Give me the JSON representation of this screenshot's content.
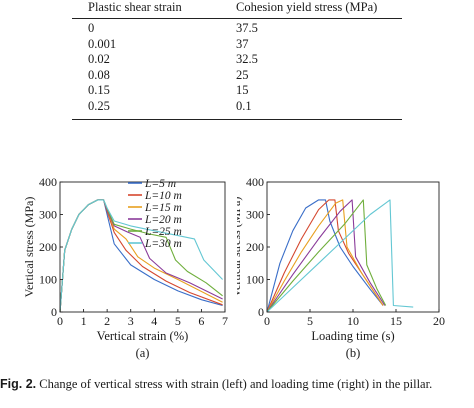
{
  "table": {
    "headers": [
      "Plastic shear strain",
      "Cohesion yield stress (MPa)"
    ],
    "rows": [
      [
        "0",
        "37.5"
      ],
      [
        "0.001",
        "37"
      ],
      [
        "0.02",
        "32.5"
      ],
      [
        "0.08",
        "25"
      ],
      [
        "0.15",
        "15"
      ],
      [
        "0.25",
        "0.1"
      ]
    ]
  },
  "figure": {
    "label": "Fig. 2.",
    "caption": "Change of vertical stress with strain (left) and loading time (right) in the pillar."
  },
  "chart_data": [
    {
      "type": "line",
      "panel_label": "(a)",
      "xlabel": "Vertical strain (%)",
      "ylabel": "Vertical stress (MPa)",
      "xlim": [
        0,
        7
      ],
      "ylim": [
        0,
        400
      ],
      "xticks": [
        "0",
        "1",
        "2",
        "3",
        "4",
        "5",
        "6",
        "7"
      ],
      "yticks": [
        "0",
        "100",
        "200",
        "300",
        "400"
      ],
      "legend_position": "top-right",
      "series": [
        {
          "name": "L=5 m",
          "color": "#3a6ec8",
          "x": [
            0,
            0.2,
            0.5,
            0.8,
            1.2,
            1.6,
            1.85,
            2.0,
            2.3,
            3,
            4,
            5,
            6,
            6.9
          ],
          "y": [
            0,
            190,
            255,
            300,
            330,
            345,
            345,
            300,
            210,
            145,
            100,
            65,
            38,
            20
          ]
        },
        {
          "name": "L=10 m",
          "color": "#d5482f",
          "x": [
            0,
            0.2,
            0.5,
            0.8,
            1.2,
            1.6,
            1.85,
            2.0,
            2.3,
            2.8,
            3.5,
            4.5,
            5.5,
            6.9
          ],
          "y": [
            0,
            190,
            255,
            300,
            330,
            345,
            345,
            310,
            245,
            190,
            140,
            95,
            60,
            22
          ]
        },
        {
          "name": "L=15 m",
          "color": "#e8a020",
          "x": [
            0,
            0.2,
            0.5,
            0.8,
            1.2,
            1.6,
            1.85,
            2.0,
            2.3,
            2.8,
            3.3,
            4,
            5,
            6.9
          ],
          "y": [
            0,
            190,
            255,
            300,
            330,
            345,
            345,
            315,
            255,
            225,
            170,
            135,
            100,
            30
          ]
        },
        {
          "name": "L=20 m",
          "color": "#8a3b9a",
          "x": [
            0,
            0.2,
            0.5,
            0.8,
            1.2,
            1.6,
            1.85,
            2.0,
            2.3,
            2.9,
            3.4,
            3.8,
            4.5,
            5.5,
            6.9
          ],
          "y": [
            0,
            190,
            255,
            300,
            330,
            345,
            345,
            315,
            265,
            245,
            230,
            165,
            120,
            90,
            40
          ]
        },
        {
          "name": "L=25 m",
          "color": "#6fae3c",
          "x": [
            0,
            0.2,
            0.5,
            0.8,
            1.2,
            1.6,
            1.85,
            2.0,
            2.3,
            3,
            3.8,
            4.5,
            4.9,
            5.4,
            6.2,
            6.9
          ],
          "y": [
            0,
            190,
            255,
            300,
            330,
            345,
            345,
            318,
            270,
            255,
            240,
            230,
            160,
            125,
            90,
            50
          ]
        },
        {
          "name": "L=30 m",
          "color": "#63c7d3",
          "x": [
            0,
            0.2,
            0.5,
            0.8,
            1.2,
            1.6,
            1.85,
            2.0,
            2.3,
            3,
            4,
            5,
            5.7,
            6.1,
            6.5,
            6.9
          ],
          "y": [
            0,
            190,
            255,
            300,
            330,
            345,
            345,
            320,
            280,
            265,
            250,
            235,
            225,
            160,
            130,
            100
          ]
        }
      ]
    },
    {
      "type": "line",
      "panel_label": "(b)",
      "xlabel": "Loading time (s)",
      "ylabel": "Vertical stress (MPa)",
      "xlim": [
        0,
        20
      ],
      "ylim": [
        0,
        400
      ],
      "xticks": [
        "0",
        "5",
        "10",
        "15",
        "20"
      ],
      "yticks": [
        "0",
        "100",
        "200",
        "300",
        "400"
      ],
      "series": [
        {
          "name": "L=5 m",
          "color": "#3a6ec8",
          "x": [
            0,
            1.5,
            3,
            4.5,
            6,
            6.8,
            7.3,
            8.5,
            10,
            12,
            13.5
          ],
          "y": [
            0,
            150,
            250,
            320,
            345,
            345,
            280,
            200,
            140,
            70,
            20
          ]
        },
        {
          "name": "L=10 m",
          "color": "#d5482f",
          "x": [
            0,
            2,
            4,
            6,
            7.2,
            7.9,
            8.3,
            9.5,
            11.5,
            13.5
          ],
          "y": [
            0,
            120,
            225,
            315,
            345,
            345,
            250,
            180,
            100,
            20
          ]
        },
        {
          "name": "L=15 m",
          "color": "#e8a020",
          "x": [
            0,
            2,
            4,
            6,
            8,
            8.8,
            9.3,
            11,
            13.5
          ],
          "y": [
            0,
            95,
            185,
            265,
            335,
            345,
            200,
            120,
            20
          ]
        },
        {
          "name": "L=20 m",
          "color": "#8a3b9a",
          "x": [
            0,
            3,
            6,
            8.5,
            9.9,
            10.3,
            12,
            13.7
          ],
          "y": [
            0,
            115,
            225,
            310,
            345,
            170,
            90,
            20
          ]
        },
        {
          "name": "L=25 m",
          "color": "#6fae3c",
          "x": [
            0,
            3,
            6,
            9,
            11.2,
            11.6,
            12.8,
            13.8
          ],
          "y": [
            0,
            95,
            185,
            270,
            345,
            145,
            70,
            20
          ]
        },
        {
          "name": "L=30 m",
          "color": "#63c7d3",
          "x": [
            0,
            3,
            6,
            9,
            12,
            14.3,
            14.7,
            17
          ],
          "y": [
            0,
            75,
            150,
            225,
            300,
            345,
            20,
            15
          ]
        }
      ]
    }
  ]
}
